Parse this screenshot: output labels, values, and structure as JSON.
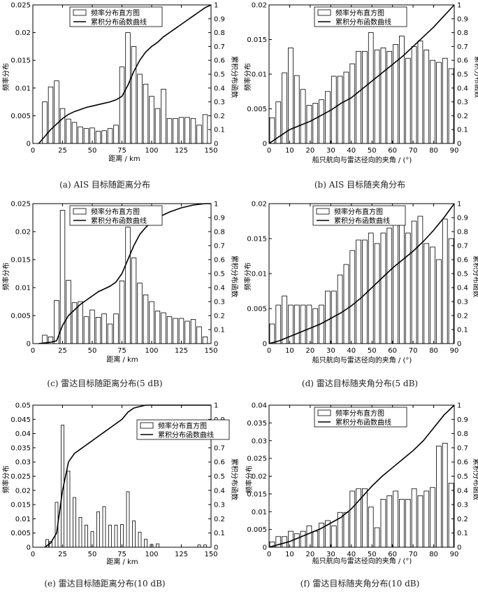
{
  "figure": {
    "chart_data": [
      {
        "id": "a",
        "type": "bar",
        "caption": "(a) AIS 目标随距离分布",
        "xlabel": "距离 / km",
        "ylabel": "频率分布",
        "ylabel2": "累积分布函数",
        "xlim": [
          0,
          150
        ],
        "ylim": [
          0,
          0.025
        ],
        "y2lim": [
          0,
          1
        ],
        "xticks": [
          0,
          25,
          50,
          75,
          100,
          125,
          150
        ],
        "yticks": [
          0,
          0.005,
          0.01,
          0.015,
          0.02,
          0.025
        ],
        "yticklabels": [
          "0",
          "0.005",
          "0.01",
          "0.015",
          "0.02",
          "0.025"
        ],
        "y2ticks": [
          0,
          0.1,
          0.2,
          0.3,
          0.4,
          0.5,
          0.6,
          0.7,
          0.8,
          0.9,
          1
        ],
        "y2ticklabels": [
          "0",
          "0.1",
          "0.2",
          "0.3",
          "0.4",
          "0.5",
          "0.6",
          "0.7",
          "0.8",
          "0.9",
          "1"
        ],
        "legend": [
          "频率分布直方图",
          "累积分布函数曲线"
        ],
        "legend_position": "top-center",
        "bar_x": [
          10,
          15,
          20,
          25,
          30,
          35,
          40,
          45,
          50,
          55,
          60,
          65,
          70,
          75,
          80,
          85,
          90,
          95,
          100,
          105,
          110,
          115,
          120,
          125,
          130,
          135,
          140,
          145
        ],
        "bar_values": [
          0.0075,
          0.0102,
          0.0113,
          0.0063,
          0.0044,
          0.0038,
          0.003,
          0.0027,
          0.0028,
          0.0022,
          0.0023,
          0.0027,
          0.0033,
          0.0138,
          0.02,
          0.0175,
          0.0125,
          0.0107,
          0.0085,
          0.0063,
          0.0098,
          0.0045,
          0.0045,
          0.0047,
          0.0047,
          0.0045,
          0.0033,
          0.0052
        ],
        "cdf_x": [
          5,
          10,
          15,
          20,
          25,
          30,
          35,
          40,
          45,
          50,
          55,
          60,
          65,
          70,
          75,
          80,
          85,
          90,
          95,
          100,
          105,
          110,
          115,
          120,
          125,
          130,
          135,
          140,
          145,
          150
        ],
        "cdf_y": [
          0,
          0.05,
          0.1,
          0.14,
          0.18,
          0.21,
          0.23,
          0.245,
          0.26,
          0.27,
          0.28,
          0.29,
          0.3,
          0.315,
          0.34,
          0.42,
          0.52,
          0.6,
          0.66,
          0.7,
          0.73,
          0.77,
          0.8,
          0.83,
          0.86,
          0.89,
          0.92,
          0.95,
          0.98,
          1.0
        ]
      },
      {
        "id": "b",
        "type": "bar",
        "caption": "(b) AIS 目标随夹角分布",
        "xlabel": "船只航向与雷达径向的夹角 / (°)",
        "ylabel": "频率分布",
        "ylabel2": "累积分布函数",
        "xlim": [
          0,
          90
        ],
        "ylim": [
          0,
          0.02
        ],
        "y2lim": [
          0,
          1
        ],
        "xticks": [
          0,
          10,
          20,
          30,
          40,
          50,
          60,
          70,
          80,
          90
        ],
        "yticks": [
          0,
          0.005,
          0.01,
          0.015,
          0.02
        ],
        "yticklabels": [
          "0",
          "0.005",
          "0.01",
          "0.015",
          "0.02"
        ],
        "y2ticks": [
          0,
          0.1,
          0.2,
          0.3,
          0.4,
          0.5,
          0.6,
          0.7,
          0.8,
          0.9,
          1
        ],
        "y2ticklabels": [
          "0",
          "0.1",
          "0.2",
          "0.3",
          "0.4",
          "0.5",
          "0.6",
          "0.7",
          "0.8",
          "0.9",
          "1"
        ],
        "legend": [
          "频率分布直方图",
          "累积分布函数曲线"
        ],
        "legend_position": "top-center",
        "bar_x": [
          1.5,
          4.5,
          7.5,
          10.5,
          13.5,
          16.5,
          19.5,
          22.5,
          25.5,
          28.5,
          31.5,
          34.5,
          37.5,
          40.5,
          43.5,
          46.5,
          49.5,
          52.5,
          55.5,
          58.5,
          61.5,
          64.5,
          67.5,
          70.5,
          73.5,
          76.5,
          79.5,
          82.5,
          85.5,
          88.5
        ],
        "bar_values": [
          0.0037,
          0.006,
          0.0102,
          0.0138,
          0.0098,
          0.0078,
          0.0055,
          0.0058,
          0.0063,
          0.0075,
          0.0097,
          0.0097,
          0.0103,
          0.0115,
          0.0133,
          0.0133,
          0.016,
          0.0135,
          0.0138,
          0.0133,
          0.0143,
          0.0155,
          0.0123,
          0.014,
          0.0148,
          0.0135,
          0.012,
          0.0117,
          0.0123,
          0.0108
        ],
        "cdf_x": [
          0,
          5,
          10,
          15,
          20,
          25,
          30,
          35,
          40,
          45,
          50,
          55,
          60,
          65,
          70,
          75,
          80,
          85,
          90
        ],
        "cdf_y": [
          0,
          0.05,
          0.1,
          0.13,
          0.16,
          0.2,
          0.24,
          0.29,
          0.33,
          0.39,
          0.45,
          0.51,
          0.57,
          0.63,
          0.7,
          0.77,
          0.84,
          0.92,
          1.0
        ]
      },
      {
        "id": "c",
        "type": "bar",
        "caption": "(c) 雷达目标随距离分布(5 dB)",
        "xlabel": "距离 / km",
        "ylabel": "频率分布",
        "ylabel2": "累积分布函数",
        "xlim": [
          0,
          150
        ],
        "ylim": [
          0,
          0.025
        ],
        "y2lim": [
          0,
          1
        ],
        "xticks": [
          0,
          25,
          50,
          75,
          100,
          125,
          150
        ],
        "yticks": [
          0,
          0.005,
          0.01,
          0.015,
          0.02,
          0.025
        ],
        "yticklabels": [
          "0",
          "0.005",
          "0.01",
          "0.015",
          "0.02",
          "0.025"
        ],
        "y2ticks": [
          0,
          0.1,
          0.2,
          0.3,
          0.4,
          0.5,
          0.6,
          0.7,
          0.8,
          0.9,
          1
        ],
        "y2ticklabels": [
          "0",
          "0.1",
          "0.2",
          "0.3",
          "0.4",
          "0.5",
          "0.6",
          "0.7",
          "0.8",
          "0.9",
          "1"
        ],
        "legend": [
          "频率分布直方图",
          "累积分布函数曲线"
        ],
        "legend_position": "top-center",
        "bar_x": [
          10,
          15,
          20,
          25,
          30,
          35,
          40,
          45,
          50,
          55,
          60,
          65,
          70,
          75,
          80,
          85,
          90,
          95,
          100,
          105,
          110,
          115,
          120,
          125,
          130,
          135,
          140,
          145
        ],
        "bar_values": [
          0.0015,
          0.0012,
          0.0077,
          0.0238,
          0.0113,
          0.0073,
          0.0075,
          0.0048,
          0.006,
          0.0047,
          0.0053,
          0.0035,
          0.0053,
          0.0112,
          0.0208,
          0.0153,
          0.0108,
          0.0087,
          0.0075,
          0.0058,
          0.0055,
          0.0048,
          0.0045,
          0.0045,
          0.004,
          0.0043,
          0.003,
          0.0012
        ],
        "cdf_x": [
          5,
          10,
          15,
          20,
          25,
          30,
          35,
          40,
          45,
          50,
          55,
          60,
          65,
          70,
          75,
          80,
          85,
          90,
          95,
          100,
          105,
          110,
          115,
          120,
          125,
          130,
          135,
          140,
          145,
          150
        ],
        "cdf_y": [
          0,
          0.005,
          0.01,
          0.02,
          0.13,
          0.2,
          0.24,
          0.28,
          0.31,
          0.34,
          0.37,
          0.39,
          0.41,
          0.44,
          0.5,
          0.6,
          0.7,
          0.78,
          0.83,
          0.87,
          0.9,
          0.92,
          0.94,
          0.955,
          0.97,
          0.98,
          0.99,
          0.995,
          1.0,
          1.0
        ]
      },
      {
        "id": "d",
        "type": "bar",
        "caption": "(d) 雷达目标随夹角分布(5 dB)",
        "xlabel": "船只航向与雷达径向的夹角 / (°)",
        "ylabel": "频率分布",
        "ylabel2": "累积分布函数",
        "xlim": [
          0,
          90
        ],
        "ylim": [
          0,
          0.02
        ],
        "y2lim": [
          0,
          1
        ],
        "xticks": [
          0,
          10,
          20,
          30,
          40,
          50,
          60,
          70,
          80,
          90
        ],
        "yticks": [
          0,
          0.005,
          0.01,
          0.015,
          0.02
        ],
        "yticklabels": [
          "0",
          "0.005",
          "0.01",
          "0.015",
          "0.02"
        ],
        "y2ticks": [
          0,
          0.1,
          0.2,
          0.3,
          0.4,
          0.5,
          0.6,
          0.7,
          0.8,
          0.9,
          1
        ],
        "y2ticklabels": [
          "0",
          "0.1",
          "0.2",
          "0.3",
          "0.4",
          "0.5",
          "0.6",
          "0.7",
          "0.8",
          "0.9",
          "1"
        ],
        "legend": [
          "频率分布直方图",
          "累积分布函数曲线"
        ],
        "legend_position": "top-right",
        "bar_x": [
          1.5,
          4.5,
          7.5,
          10.5,
          13.5,
          16.5,
          19.5,
          22.5,
          25.5,
          28.5,
          31.5,
          34.5,
          37.5,
          40.5,
          43.5,
          46.5,
          49.5,
          52.5,
          55.5,
          58.5,
          61.5,
          64.5,
          67.5,
          70.5,
          73.5,
          76.5,
          79.5,
          82.5,
          85.5,
          88.5
        ],
        "bar_values": [
          0.0028,
          0.0055,
          0.0068,
          0.0055,
          0.0055,
          0.0055,
          0.0055,
          0.005,
          0.0055,
          0.0075,
          0.0075,
          0.0098,
          0.0113,
          0.0133,
          0.0148,
          0.0148,
          0.0158,
          0.0143,
          0.0158,
          0.0165,
          0.0182,
          0.0185,
          0.0158,
          0.0175,
          0.0182,
          0.0143,
          0.0138,
          0.012,
          0.0178,
          0.015
        ],
        "cdf_x": [
          0,
          5,
          10,
          15,
          20,
          25,
          30,
          35,
          40,
          45,
          50,
          55,
          60,
          65,
          70,
          75,
          80,
          85,
          90
        ],
        "cdf_y": [
          0,
          0.02,
          0.05,
          0.08,
          0.11,
          0.14,
          0.18,
          0.22,
          0.27,
          0.33,
          0.4,
          0.47,
          0.54,
          0.6,
          0.66,
          0.73,
          0.81,
          0.9,
          1.0
        ]
      },
      {
        "id": "e",
        "type": "bar",
        "caption": "(e) 雷达目标随距离分布(10 dB)",
        "xlabel": "距离 / km",
        "ylabel": "频率分布",
        "ylabel2": "累积分布函数",
        "xlim": [
          0,
          150
        ],
        "ylim": [
          0,
          0.05
        ],
        "y2lim": [
          0,
          1
        ],
        "xticks": [
          0,
          25,
          50,
          75,
          100,
          125,
          150
        ],
        "yticks": [
          0,
          0.005,
          0.01,
          0.015,
          0.02,
          0.025,
          0.03,
          0.035,
          0.04,
          0.045,
          0.05
        ],
        "yticklabels": [
          "0",
          "0.005",
          "0.01",
          "0.015",
          "0.02",
          "0.025",
          "0.03",
          "0.035",
          "0.04",
          "0.045",
          "0.05"
        ],
        "y2ticks": [
          0,
          0.1,
          0.2,
          0.3,
          0.4,
          0.5,
          0.6,
          0.7,
          0.8,
          0.9,
          1
        ],
        "y2ticklabels": [
          "0",
          "0.1",
          "0.2",
          "0.3",
          "0.4",
          "0.5",
          "0.6",
          "0.7",
          "0.8",
          "0.9",
          "1"
        ],
        "legend": [
          "频率分布直方图",
          "累积分布函数曲线"
        ],
        "legend_position": "top-right",
        "bar_x": [
          12,
          15,
          20,
          25,
          30,
          35,
          40,
          45,
          50,
          55,
          60,
          65,
          70,
          75,
          80,
          85,
          90,
          95,
          100,
          105,
          140,
          145
        ],
        "bar_values": [
          0.0027,
          0.002,
          0.0158,
          0.043,
          0.0268,
          0.0175,
          0.0105,
          0.0078,
          0.0055,
          0.0125,
          0.0143,
          0.0078,
          0.0078,
          0.008,
          0.0195,
          0.0093,
          0.0053,
          0.0028,
          0.001,
          0.0012,
          0.0008,
          0.0008
        ],
        "cdf_x": [
          10,
          15,
          20,
          25,
          30,
          35,
          40,
          45,
          50,
          55,
          60,
          65,
          70,
          75,
          80,
          85,
          90,
          95,
          100,
          110,
          150
        ],
        "cdf_y": [
          0,
          0.03,
          0.1,
          0.4,
          0.6,
          0.66,
          0.69,
          0.72,
          0.75,
          0.78,
          0.81,
          0.84,
          0.87,
          0.9,
          0.95,
          0.98,
          0.99,
          1.0,
          1.0,
          1.0,
          1.0
        ]
      },
      {
        "id": "f",
        "type": "bar",
        "caption": "(f) 雷达目标随夹角分布(10 dB)",
        "xlabel": "船只航向与雷达径向的夹角 / (°)",
        "ylabel": "频率分布",
        "ylabel2": "累积分布函数",
        "xlim": [
          0,
          90
        ],
        "ylim": [
          0,
          0.04
        ],
        "y2lim": [
          0,
          1
        ],
        "xticks": [
          0,
          10,
          20,
          30,
          40,
          50,
          60,
          70,
          80,
          90
        ],
        "yticks": [
          0,
          0.005,
          0.01,
          0.015,
          0.02,
          0.025,
          0.03,
          0.035,
          0.04
        ],
        "yticklabels": [
          "0",
          "0.005",
          "0.01",
          "0.015",
          "0.02",
          "0.025",
          "0.03",
          "0.035",
          "0.04"
        ],
        "y2ticks": [
          0,
          0.1,
          0.2,
          0.3,
          0.4,
          0.5,
          0.6,
          0.7,
          0.8,
          0.9,
          1
        ],
        "y2ticklabels": [
          "0",
          "0.1",
          "0.2",
          "0.3",
          "0.4",
          "0.5",
          "0.6",
          "0.7",
          "0.8",
          "0.9",
          "1"
        ],
        "legend": [
          "频率分布直方图",
          "累积分布函数曲线"
        ],
        "legend_position": "top-center",
        "bar_x": [
          1.5,
          4.5,
          7.5,
          10.5,
          13.5,
          16.5,
          19.5,
          22.5,
          25.5,
          28.5,
          31.5,
          34.5,
          37.5,
          40.5,
          43.5,
          46.5,
          49.5,
          52.5,
          55.5,
          58.5,
          61.5,
          64.5,
          67.5,
          70.5,
          73.5,
          76.5,
          79.5,
          82.5,
          85.5,
          88.5
        ],
        "bar_values": [
          0.0015,
          0.003,
          0.003,
          0.0045,
          0.0038,
          0.0045,
          0.006,
          0.0045,
          0.0068,
          0.0075,
          0.006,
          0.0098,
          0.0098,
          0.0158,
          0.0165,
          0.0165,
          0.0113,
          0.0055,
          0.0135,
          0.0145,
          0.0158,
          0.0135,
          0.0135,
          0.0165,
          0.0145,
          0.0158,
          0.0168,
          0.0285,
          0.0293,
          0.018
        ],
        "cdf_x": [
          0,
          5,
          10,
          15,
          20,
          25,
          30,
          35,
          40,
          45,
          50,
          55,
          60,
          65,
          70,
          75,
          80,
          85,
          90
        ],
        "cdf_y": [
          0,
          0.02,
          0.04,
          0.07,
          0.1,
          0.13,
          0.17,
          0.21,
          0.27,
          0.35,
          0.43,
          0.5,
          0.56,
          0.62,
          0.68,
          0.75,
          0.84,
          0.93,
          1.0
        ]
      }
    ]
  }
}
